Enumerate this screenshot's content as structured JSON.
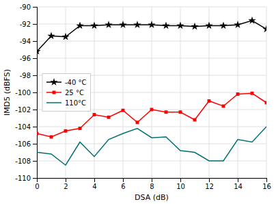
{
  "chart_data": {
    "type": "line",
    "xlabel": "DSA (dB)",
    "ylabel": "IMD5 (dBFS)",
    "x": [
      0,
      1,
      2,
      3,
      4,
      5,
      6,
      7,
      8,
      9,
      10,
      11,
      12,
      13,
      14,
      15,
      16
    ],
    "xlim": [
      0,
      16
    ],
    "xticks": [
      0,
      2,
      4,
      6,
      8,
      10,
      12,
      14,
      16
    ],
    "ylim": [
      -110,
      -90
    ],
    "yticks": [
      -110,
      -108,
      -106,
      -104,
      -102,
      -100,
      -98,
      -96,
      -94,
      -92,
      -90
    ],
    "grid": true,
    "legend": "center left",
    "series": [
      {
        "name": "-40 °C",
        "color": "#000000",
        "marker": "star",
        "values": [
          -95.2,
          -93.4,
          -93.5,
          -92.2,
          -92.2,
          -92.1,
          -92.1,
          -92.1,
          -92.1,
          -92.2,
          -92.2,
          -92.3,
          -92.2,
          -92.2,
          -92.1,
          -91.6,
          -92.6
        ]
      },
      {
        "name": "25 °C",
        "color": "#ff0000",
        "marker": "square",
        "values": [
          -104.8,
          -105.2,
          -104.5,
          -104.2,
          -102.6,
          -102.9,
          -102.1,
          -103.5,
          -102.0,
          -102.3,
          -102.3,
          -103.2,
          -101.0,
          -101.6,
          -100.2,
          -100.1,
          -101.2
        ]
      },
      {
        "name": "110°C",
        "color": "#007070",
        "values": [
          -107.0,
          -107.2,
          -108.5,
          -105.8,
          -107.5,
          -105.5,
          -104.8,
          -104.2,
          -105.3,
          -105.2,
          -106.8,
          -107.0,
          -108.0,
          -108.0,
          -105.5,
          -105.8,
          -104.0
        ]
      }
    ]
  }
}
